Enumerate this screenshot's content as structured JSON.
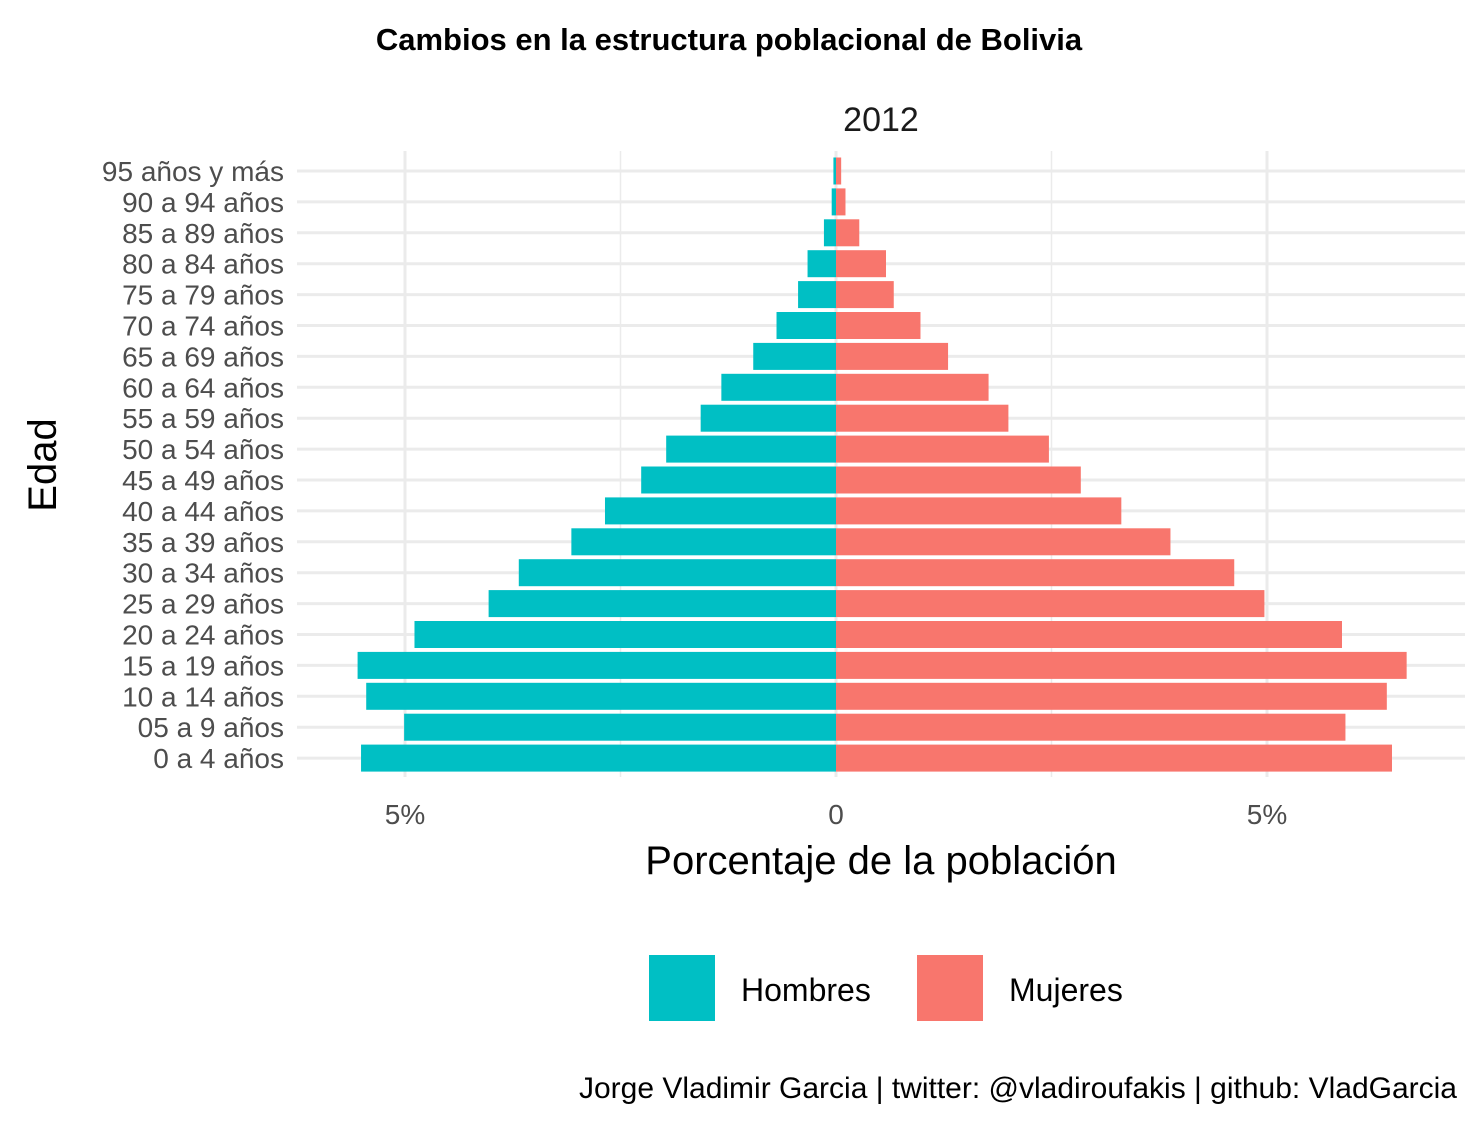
{
  "chart_data": {
    "type": "bar",
    "orientation": "horizontal",
    "title": "Cambios en la estructura poblacional de Bolivia",
    "facet_label": "2012",
    "xlabel": "Porcentaje de la población",
    "ylabel": "Edad",
    "x_ticks": [
      {
        "value": -5,
        "label": "5%"
      },
      {
        "value": 0,
        "label": "0"
      },
      {
        "value": 5,
        "label": "5%"
      }
    ],
    "xlim": [
      -6.3,
      7.15
    ],
    "grid": true,
    "legend_position": "bottom",
    "categories": [
      "0 a 4 años",
      "05 a 9 años",
      "10 a 14 años",
      "15 a 19 años",
      "20 a 24 años",
      "25 a 29 años",
      "30 a 34 años",
      "35 a 39 años",
      "40 a 44 años",
      "45 a 49 años",
      "50 a 54 años",
      "55 a 59 años",
      "60 a 64 años",
      "65 a 69 años",
      "70 a 74 años",
      "75 a 79 años",
      "80 a 84 años",
      "85 a 89 años",
      "90 a 94 años",
      "95 años y más"
    ],
    "series": [
      {
        "name": "Hombres",
        "color": "#00BFC4",
        "values": [
          -5.51,
          -5.01,
          -5.45,
          -5.55,
          -4.89,
          -4.03,
          -3.68,
          -3.07,
          -2.68,
          -2.26,
          -1.97,
          -1.57,
          -1.33,
          -0.96,
          -0.69,
          -0.44,
          -0.33,
          -0.14,
          -0.05,
          -0.03
        ]
      },
      {
        "name": "Mujeres",
        "color": "#F8766D",
        "values": [
          6.45,
          5.91,
          6.39,
          6.62,
          5.87,
          4.97,
          4.62,
          3.88,
          3.31,
          2.84,
          2.47,
          2.0,
          1.77,
          1.3,
          0.98,
          0.67,
          0.58,
          0.27,
          0.11,
          0.06
        ]
      }
    ]
  },
  "caption": "Jorge Vladimir Garcia | twitter: @vladiroufakis | github: VladGarcia"
}
